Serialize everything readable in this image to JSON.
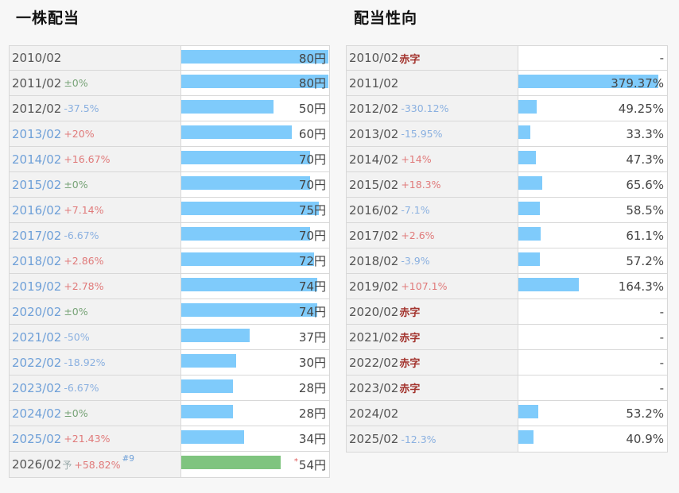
{
  "dividend": {
    "title": "一株配当",
    "rows": [
      {
        "year": "2010/02",
        "change": "",
        "change_type": "",
        "year_color": "gray",
        "value": 80,
        "value_label": "80円"
      },
      {
        "year": "2011/02",
        "change": "±0%",
        "change_type": "zero",
        "year_color": "gray",
        "value": 80,
        "value_label": "80円"
      },
      {
        "year": "2012/02",
        "change": "-37.5%",
        "change_type": "neg",
        "year_color": "gray",
        "value": 50,
        "value_label": "50円"
      },
      {
        "year": "2013/02",
        "change": "+20%",
        "change_type": "pos",
        "year_color": "blue",
        "value": 60,
        "value_label": "60円"
      },
      {
        "year": "2014/02",
        "change": "+16.67%",
        "change_type": "pos",
        "year_color": "blue",
        "value": 70,
        "value_label": "70円"
      },
      {
        "year": "2015/02",
        "change": "±0%",
        "change_type": "zero",
        "year_color": "blue",
        "value": 70,
        "value_label": "70円"
      },
      {
        "year": "2016/02",
        "change": "+7.14%",
        "change_type": "pos",
        "year_color": "blue",
        "value": 75,
        "value_label": "75円"
      },
      {
        "year": "2017/02",
        "change": "-6.67%",
        "change_type": "neg",
        "year_color": "blue",
        "value": 70,
        "value_label": "70円"
      },
      {
        "year": "2018/02",
        "change": "+2.86%",
        "change_type": "pos",
        "year_color": "blue",
        "value": 72,
        "value_label": "72円"
      },
      {
        "year": "2019/02",
        "change": "+2.78%",
        "change_type": "pos",
        "year_color": "blue",
        "value": 74,
        "value_label": "74円"
      },
      {
        "year": "2020/02",
        "change": "±0%",
        "change_type": "zero",
        "year_color": "blue",
        "value": 74,
        "value_label": "74円"
      },
      {
        "year": "2021/02",
        "change": "-50%",
        "change_type": "neg",
        "year_color": "blue",
        "value": 37,
        "value_label": "37円"
      },
      {
        "year": "2022/02",
        "change": "-18.92%",
        "change_type": "neg",
        "year_color": "blue",
        "value": 30,
        "value_label": "30円"
      },
      {
        "year": "2023/02",
        "change": "-6.67%",
        "change_type": "neg",
        "year_color": "blue",
        "value": 28,
        "value_label": "28円"
      },
      {
        "year": "2024/02",
        "change": "±0%",
        "change_type": "zero",
        "year_color": "blue",
        "value": 28,
        "value_label": "28円"
      },
      {
        "year": "2025/02",
        "change": "+21.43%",
        "change_type": "pos",
        "year_color": "blue",
        "value": 34,
        "value_label": "34円"
      },
      {
        "year": "2026/02",
        "forecast": "予",
        "change": "+58.82%",
        "change_type": "pos",
        "year_color": "gray",
        "note": "#9",
        "value": 54,
        "value_label": "54円",
        "star": "*",
        "bar_color": "#7fc47f"
      }
    ]
  },
  "payout": {
    "title": "配当性向",
    "deficit_label": "赤字",
    "rows": [
      {
        "year": "2010/02",
        "deficit": true,
        "change": "",
        "change_type": "",
        "value": null,
        "value_label": "-"
      },
      {
        "year": "2011/02",
        "deficit": false,
        "change": "",
        "change_type": "",
        "value": 379.37,
        "value_label": "379.37%"
      },
      {
        "year": "2012/02",
        "deficit": false,
        "change": "-330.12%",
        "change_type": "neg",
        "value": 49.25,
        "value_label": "49.25%"
      },
      {
        "year": "2013/02",
        "deficit": false,
        "change": "-15.95%",
        "change_type": "neg",
        "value": 33.3,
        "value_label": "33.3%"
      },
      {
        "year": "2014/02",
        "deficit": false,
        "change": "+14%",
        "change_type": "pos",
        "value": 47.3,
        "value_label": "47.3%"
      },
      {
        "year": "2015/02",
        "deficit": false,
        "change": "+18.3%",
        "change_type": "pos",
        "value": 65.6,
        "value_label": "65.6%"
      },
      {
        "year": "2016/02",
        "deficit": false,
        "change": "-7.1%",
        "change_type": "neg",
        "value": 58.5,
        "value_label": "58.5%"
      },
      {
        "year": "2017/02",
        "deficit": false,
        "change": "+2.6%",
        "change_type": "pos",
        "value": 61.1,
        "value_label": "61.1%"
      },
      {
        "year": "2018/02",
        "deficit": false,
        "change": "-3.9%",
        "change_type": "neg",
        "value": 57.2,
        "value_label": "57.2%"
      },
      {
        "year": "2019/02",
        "deficit": false,
        "change": "+107.1%",
        "change_type": "pos",
        "value": 164.3,
        "value_label": "164.3%"
      },
      {
        "year": "2020/02",
        "deficit": true,
        "change": "",
        "change_type": "",
        "value": null,
        "value_label": "-"
      },
      {
        "year": "2021/02",
        "deficit": true,
        "change": "",
        "change_type": "",
        "value": null,
        "value_label": "-"
      },
      {
        "year": "2022/02",
        "deficit": true,
        "change": "",
        "change_type": "",
        "value": null,
        "value_label": "-"
      },
      {
        "year": "2023/02",
        "deficit": true,
        "change": "",
        "change_type": "",
        "value": null,
        "value_label": "-"
      },
      {
        "year": "2024/02",
        "deficit": false,
        "change": "",
        "change_type": "",
        "value": 53.2,
        "value_label": "53.2%"
      },
      {
        "year": "2025/02",
        "deficit": false,
        "change": "-12.3%",
        "change_type": "neg",
        "value": 40.9,
        "value_label": "40.9%"
      }
    ]
  },
  "colors": {
    "bar": "#7fcbfb",
    "forecast_bar": "#7fc47f",
    "deficit": "#a3342e",
    "positive": "#e07a7a",
    "negative": "#8ab0e0",
    "zero": "#77a377"
  }
}
